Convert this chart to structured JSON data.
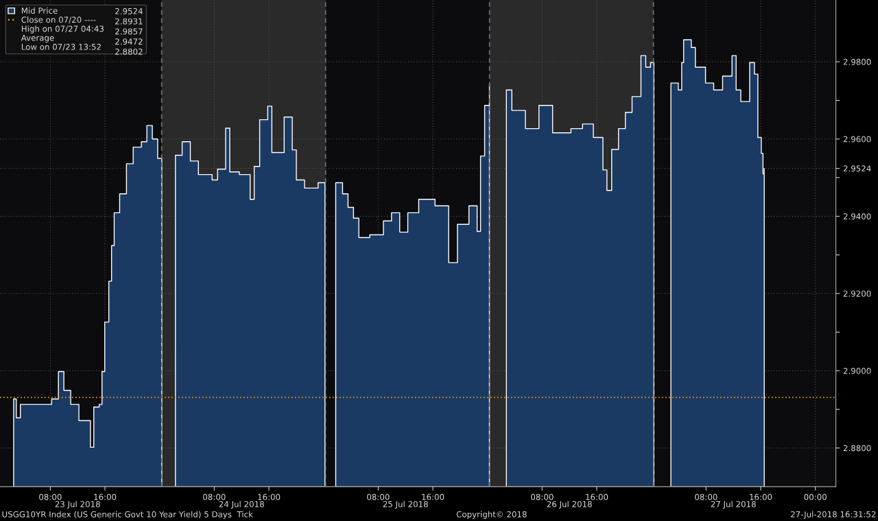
{
  "chart_data": {
    "type": "area",
    "x": [
      "2018-07-23T02:38",
      "2018-07-23T03:01",
      "2018-07-23T03:37",
      "2018-07-23T06:13",
      "2018-07-23T08:12",
      "2018-07-23T09:11",
      "2018-07-23T09:59",
      "2018-07-23T10:59",
      "2018-07-23T12:11",
      "2018-07-23T13:52",
      "2018-07-23T14:22",
      "2018-07-23T15:10",
      "2018-07-23T15:34",
      "2018-07-23T15:58",
      "2018-07-23T16:34",
      "2018-07-23T16:58",
      "2018-07-23T17:21",
      "2018-07-23T18:09",
      "2018-07-23T19:09",
      "2018-07-23T20:08",
      "2018-07-23T21:20",
      "2018-07-23T22:08",
      "2018-07-23T22:56",
      "2018-07-23T23:43",
      "2018-07-24T00:19",
      "2018-07-24T00:24",
      "2018-07-24T02:19",
      "2018-07-24T03:18",
      "2018-07-24T04:30",
      "2018-07-24T05:41",
      "2018-07-24T07:41",
      "2018-07-24T08:29",
      "2018-07-24T09:40",
      "2018-07-24T10:16",
      "2018-07-24T11:40",
      "2018-07-24T13:15",
      "2018-07-24T13:51",
      "2018-07-24T14:39",
      "2018-07-24T15:50",
      "2018-07-24T16:26",
      "2018-07-24T18:14",
      "2018-07-24T19:25",
      "2018-07-24T20:01",
      "2018-07-24T21:13",
      "2018-07-24T23:12",
      "2018-07-25T00:12",
      "2018-07-25T00:18",
      "2018-07-25T01:47",
      "2018-07-25T02:47",
      "2018-07-25T03:35",
      "2018-07-25T04:23",
      "2018-07-25T05:10",
      "2018-07-25T06:46",
      "2018-07-25T08:46",
      "2018-07-25T09:57",
      "2018-07-25T11:09",
      "2018-07-25T12:20",
      "2018-07-25T13:56",
      "2018-07-25T16:19",
      "2018-07-25T18:19",
      "2018-07-25T19:36",
      "2018-07-25T21:17",
      "2018-07-25T22:29",
      "2018-07-25T22:59",
      "2018-07-25T23:35",
      "2018-07-26T00:17",
      "2018-07-26T00:24",
      "2018-07-26T02:46",
      "2018-07-26T03:34",
      "2018-07-26T05:33",
      "2018-07-26T07:32",
      "2018-07-26T09:32",
      "2018-07-26T12:13",
      "2018-07-26T13:55",
      "2018-07-26T15:30",
      "2018-07-26T16:54",
      "2018-07-26T17:29",
      "2018-07-26T18:11",
      "2018-07-26T19:11",
      "2018-07-26T20:11",
      "2018-07-26T21:10",
      "2018-07-26T22:28",
      "2018-07-26T23:10",
      "2018-07-26T23:52",
      "2018-07-27T00:22",
      "2018-07-27T00:30",
      "2018-07-27T02:51",
      "2018-07-27T03:56",
      "2018-07-27T04:26",
      "2018-07-27T04:43",
      "2018-07-27T05:50",
      "2018-07-27T06:26",
      "2018-07-27T07:55",
      "2018-07-27T09:07",
      "2018-07-27T10:25",
      "2018-07-27T11:48",
      "2018-07-27T12:24",
      "2018-07-27T13:05",
      "2018-07-27T14:23",
      "2018-07-27T15:05",
      "2018-07-27T15:35",
      "2018-07-27T16:05",
      "2018-07-27T16:20",
      "2018-07-27T16:31"
    ],
    "series": [
      {
        "name": "Mid Price",
        "color": "#1a3a63",
        "values": [
          2.8927,
          2.8878,
          2.8913,
          2.8913,
          2.8927,
          2.8998,
          2.8949,
          2.8913,
          2.8871,
          2.8802,
          2.8906,
          2.8913,
          2.8998,
          2.9126,
          2.9232,
          2.9324,
          2.9409,
          2.9458,
          2.9536,
          2.9579,
          2.9593,
          2.9635,
          2.96,
          2.955,
          2.955,
          null,
          2.9558,
          2.9593,
          2.9543,
          2.9508,
          2.9494,
          2.9522,
          2.9628,
          2.9515,
          2.9508,
          2.9444,
          2.9529,
          2.965,
          2.9685,
          2.9565,
          2.9657,
          2.9572,
          2.9494,
          2.9473,
          2.9487,
          2.948,
          null,
          2.9487,
          2.9458,
          2.9423,
          2.9395,
          2.9345,
          2.9352,
          2.9388,
          2.9409,
          2.9359,
          2.9409,
          2.9444,
          2.9427,
          2.928,
          2.9379,
          2.9427,
          2.9361,
          2.9556,
          2.9687,
          2.974,
          null,
          2.9727,
          2.9674,
          2.9627,
          2.9687,
          2.9616,
          2.9627,
          2.9639,
          2.9604,
          2.952,
          2.9467,
          2.9573,
          2.9627,
          2.9669,
          2.971,
          2.9816,
          2.9786,
          2.9798,
          2.9768,
          null,
          2.9745,
          2.9727,
          2.9798,
          2.9857,
          2.9837,
          2.9786,
          2.9745,
          2.9727,
          2.9763,
          2.9816,
          2.9727,
          2.9697,
          2.9798,
          2.9768,
          2.9604,
          2.9563,
          2.951,
          2.9524
        ]
      }
    ],
    "xlim": [
      "2018-07-23T00:38",
      "2018-07-28T03:00"
    ],
    "xticks": [
      {
        "value": "2018-07-23T08:00",
        "label": "08:00"
      },
      {
        "value": "2018-07-23T16:00",
        "label": "16:00"
      },
      {
        "value": "2018-07-24T08:00",
        "label": "08:00"
      },
      {
        "value": "2018-07-24T16:00",
        "label": "16:00"
      },
      {
        "value": "2018-07-25T08:00",
        "label": "08:00"
      },
      {
        "value": "2018-07-25T16:00",
        "label": "16:00"
      },
      {
        "value": "2018-07-26T08:00",
        "label": "08:00"
      },
      {
        "value": "2018-07-26T16:00",
        "label": "16:00"
      },
      {
        "value": "2018-07-27T08:00",
        "label": "08:00"
      },
      {
        "value": "2018-07-27T16:00",
        "label": "16:00"
      },
      {
        "value": "2018-07-28T00:00",
        "label": "00:00"
      }
    ],
    "x2lim": [
      "2018-07-23T00:38",
      "2018-07-28T03:00"
    ],
    "x2ticks": [
      {
        "value": "2018-07-23T12:00",
        "label": "23 Jul 2018"
      },
      {
        "value": "2018-07-24T12:00",
        "label": "24 Jul 2018"
      },
      {
        "value": "2018-07-25T12:00",
        "label": "25 Jul 2018"
      },
      {
        "value": "2018-07-26T12:00",
        "label": "26 Jul 2018"
      },
      {
        "value": "2018-07-27T12:00",
        "label": "27 Jul 2018"
      }
    ],
    "ylim": [
      2.87,
      2.996
    ],
    "yticks": [
      {
        "value": 2.88,
        "label": "2.8800"
      },
      {
        "value": 2.89,
        "label": null
      },
      {
        "value": 2.9,
        "label": "2.9000"
      },
      {
        "value": 2.91,
        "label": null
      },
      {
        "value": 2.92,
        "label": "2.9200"
      },
      {
        "value": 2.93,
        "label": null
      },
      {
        "value": 2.94,
        "label": "2.9400"
      },
      {
        "value": 2.95,
        "label": null
      },
      {
        "value": 2.9524,
        "label": "2.9524"
      },
      {
        "value": 2.96,
        "label": "2.9600"
      },
      {
        "value": 2.97,
        "label": null
      },
      {
        "value": 2.98,
        "label": "2.9800"
      }
    ],
    "bands": [
      {
        "axis": "x",
        "from": "2018-07-24T00:18",
        "to": "2018-07-25T00:18",
        "color": "#2a2a2b"
      },
      {
        "axis": "x",
        "from": "2018-07-26T00:18",
        "to": "2018-07-27T00:18",
        "color": "#2a2a2b"
      }
    ],
    "ref_lines": [
      {
        "axis": "y",
        "value": 2.8931,
        "label": "Close on 07/20 ----",
        "color": "#f39c12",
        "line_style": "dotted"
      },
      {
        "axis": "x",
        "value": "2018-07-24T00:18",
        "color": "#777777",
        "line_style": "dashed"
      },
      {
        "axis": "x",
        "value": "2018-07-25T00:18",
        "color": "#777777",
        "line_style": "dashed"
      },
      {
        "axis": "x",
        "value": "2018-07-26T00:18",
        "color": "#777777",
        "line_style": "dashed"
      },
      {
        "axis": "x",
        "value": "2018-07-27T00:18",
        "color": "#777777",
        "line_style": "dashed"
      }
    ],
    "grid": true,
    "legend": "top left",
    "annotations": [
      "2.9524",
      "2.8931",
      "High on 07/27 04:43",
      "2.9857",
      "Average",
      "2.9472",
      "Low on 07/23 13:52",
      "2.8802",
      "USGG10YR Index (US Generic Govt 10 Year Yield) 5 Days  Tick",
      "Copyright© 2018",
      "27-Jul-2018 16:31:52"
    ]
  }
}
